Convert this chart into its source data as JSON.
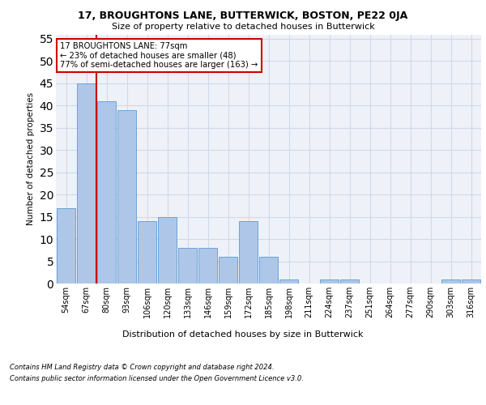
{
  "title1": "17, BROUGHTONS LANE, BUTTERWICK, BOSTON, PE22 0JA",
  "title2": "Size of property relative to detached houses in Butterwick",
  "xlabel": "Distribution of detached houses by size in Butterwick",
  "ylabel": "Number of detached properties",
  "categories": [
    "54sqm",
    "67sqm",
    "80sqm",
    "93sqm",
    "106sqm",
    "120sqm",
    "133sqm",
    "146sqm",
    "159sqm",
    "172sqm",
    "185sqm",
    "198sqm",
    "211sqm",
    "224sqm",
    "237sqm",
    "251sqm",
    "264sqm",
    "277sqm",
    "290sqm",
    "303sqm",
    "316sqm"
  ],
  "values": [
    17,
    45,
    41,
    39,
    14,
    15,
    8,
    8,
    6,
    14,
    6,
    1,
    0,
    1,
    1,
    0,
    0,
    0,
    0,
    1,
    1
  ],
  "bar_color": "#aec6e8",
  "bar_edge_color": "#5b9bd5",
  "grid_color": "#d0d8e8",
  "background_color": "#eef2f8",
  "vline_x": 1.5,
  "vline_color": "#cc0000",
  "annotation_text": "17 BROUGHTONS LANE: 77sqm\n← 23% of detached houses are smaller (48)\n77% of semi-detached houses are larger (163) →",
  "annotation_box_color": "#ffffff",
  "annotation_box_edgecolor": "#cc0000",
  "ylim": [
    0,
    56
  ],
  "yticks": [
    0,
    5,
    10,
    15,
    20,
    25,
    30,
    35,
    40,
    45,
    50,
    55
  ],
  "footnote1": "Contains HM Land Registry data © Crown copyright and database right 2024.",
  "footnote2": "Contains public sector information licensed under the Open Government Licence v3.0."
}
